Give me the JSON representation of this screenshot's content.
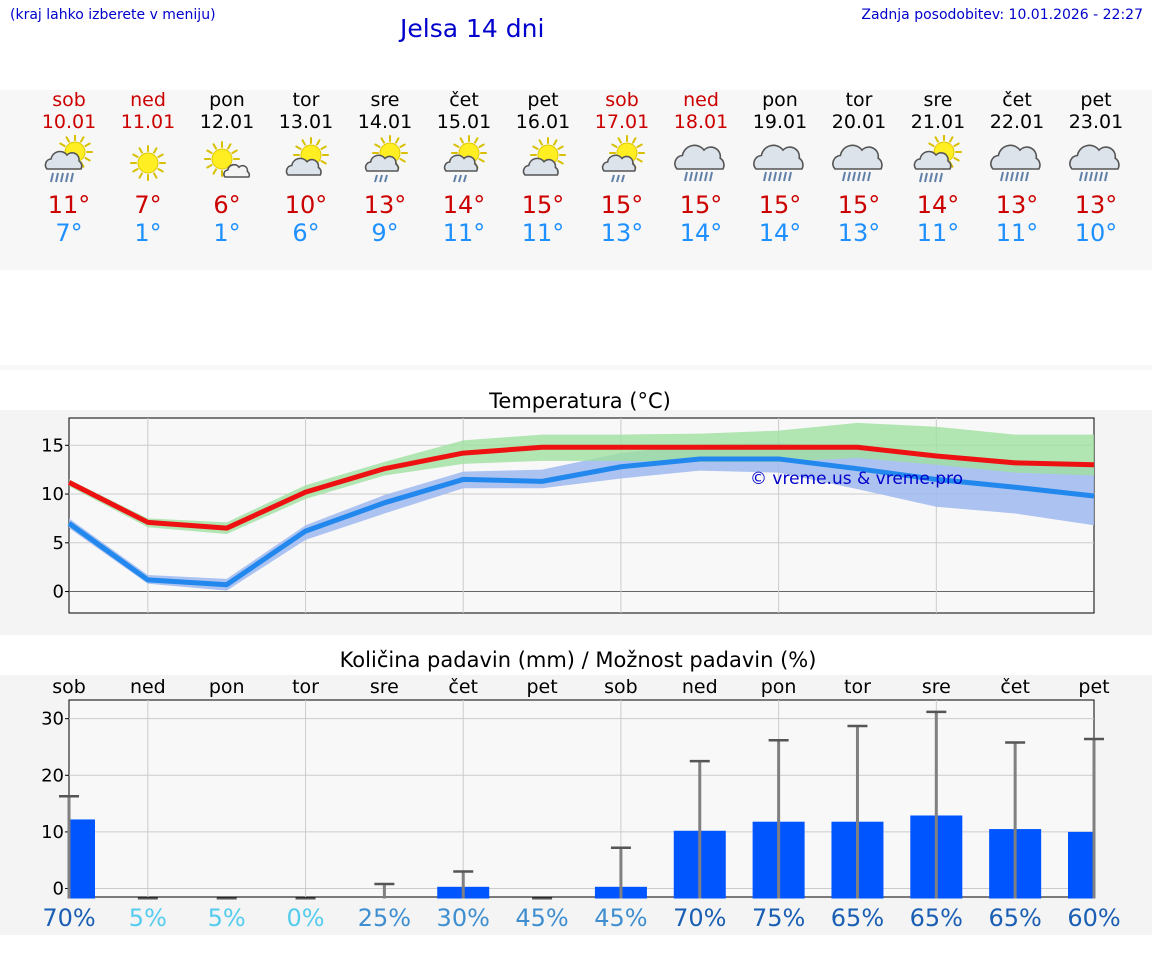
{
  "header": {
    "hint": "(kraj lahko izberete v meniju)",
    "title": "Jelsa 14 dni",
    "updated": "Zadnja posodobitev: 10.01.2026 - 22:27"
  },
  "days": [
    {
      "name": "sob",
      "date": "10.01",
      "weekend": true,
      "icon": "sun-cloud-rain-icon",
      "tmax": "11°",
      "tmin": "7°"
    },
    {
      "name": "ned",
      "date": "11.01",
      "weekend": true,
      "icon": "sun-icon",
      "tmax": "7°",
      "tmin": "1°"
    },
    {
      "name": "pon",
      "date": "12.01",
      "weekend": false,
      "icon": "sun-small-cloud-icon",
      "tmax": "6°",
      "tmin": "1°"
    },
    {
      "name": "tor",
      "date": "13.01",
      "weekend": false,
      "icon": "sun-cloud-icon",
      "tmax": "10°",
      "tmin": "6°"
    },
    {
      "name": "sre",
      "date": "14.01",
      "weekend": false,
      "icon": "sun-cloud-drizzle-icon",
      "tmax": "13°",
      "tmin": "9°"
    },
    {
      "name": "čet",
      "date": "15.01",
      "weekend": false,
      "icon": "sun-cloud-drizzle-icon",
      "tmax": "14°",
      "tmin": "11°"
    },
    {
      "name": "pet",
      "date": "16.01",
      "weekend": false,
      "icon": "sun-cloud-icon",
      "tmax": "15°",
      "tmin": "11°"
    },
    {
      "name": "sob",
      "date": "17.01",
      "weekend": true,
      "icon": "sun-cloud-drizzle-icon",
      "tmax": "15°",
      "tmin": "13°"
    },
    {
      "name": "ned",
      "date": "18.01",
      "weekend": true,
      "icon": "cloud-rain-icon",
      "tmax": "15°",
      "tmin": "14°"
    },
    {
      "name": "pon",
      "date": "19.01",
      "weekend": false,
      "icon": "cloud-rain-icon",
      "tmax": "15°",
      "tmin": "14°"
    },
    {
      "name": "tor",
      "date": "20.01",
      "weekend": false,
      "icon": "cloud-rain-icon",
      "tmax": "15°",
      "tmin": "13°"
    },
    {
      "name": "sre",
      "date": "21.01",
      "weekend": false,
      "icon": "sun-cloud-rain-icon",
      "tmax": "14°",
      "tmin": "11°"
    },
    {
      "name": "čet",
      "date": "22.01",
      "weekend": false,
      "icon": "cloud-rain-icon",
      "tmax": "13°",
      "tmin": "11°"
    },
    {
      "name": "pet",
      "date": "23.01",
      "weekend": false,
      "icon": "cloud-rain-icon",
      "tmax": "13°",
      "tmin": "10°"
    }
  ],
  "colors": {
    "weekend": "#cc0000",
    "tmax": "#ee1111",
    "tmin": "#2288ee",
    "tmax_band": "#9fe09f",
    "tmin_band": "#9fb8f0",
    "bar": "#0055ff",
    "whisker": "#808080",
    "link": "#0000cc"
  },
  "chart_data": [
    {
      "type": "line",
      "title": "Temperatura (°C)",
      "watermark": "© vreme.us & vreme.pro",
      "x": [
        "sob",
        "ned",
        "pon",
        "tor",
        "sre",
        "čet",
        "pet",
        "sob",
        "ned",
        "pon",
        "tor",
        "sre",
        "čet",
        "pet"
      ],
      "yticks": [
        "0",
        "5",
        "10",
        "15"
      ],
      "ylim": [
        -2.2,
        17.8
      ],
      "series": [
        {
          "name": "max",
          "values": [
            11.2,
            7.1,
            6.5,
            10.2,
            12.6,
            14.2,
            14.8,
            14.8,
            14.8,
            14.8,
            14.8,
            13.9,
            13.2,
            13.0
          ]
        },
        {
          "name": "min",
          "values": [
            7.0,
            1.2,
            0.7,
            6.2,
            9.1,
            11.5,
            11.3,
            12.8,
            13.6,
            13.6,
            12.6,
            11.5,
            10.7,
            9.8
          ]
        }
      ],
      "bands": [
        {
          "name": "max_range",
          "low": [
            10.8,
            6.6,
            5.9,
            9.5,
            11.9,
            13.1,
            13.4,
            13.4,
            13.3,
            13.3,
            13.7,
            13.0,
            12.2,
            11.9
          ],
          "high": [
            11.5,
            7.5,
            7.1,
            10.9,
            13.3,
            15.5,
            16.1,
            16.1,
            16.2,
            16.5,
            17.3,
            16.9,
            16.1,
            16.1
          ]
        },
        {
          "name": "min_range",
          "low": [
            6.5,
            0.8,
            0.1,
            5.3,
            8.0,
            10.6,
            10.6,
            11.6,
            12.4,
            12.2,
            10.5,
            8.7,
            8.0,
            6.8
          ],
          "high": [
            7.5,
            1.7,
            1.3,
            6.8,
            9.9,
            12.3,
            12.5,
            14.2,
            15.1,
            15.2,
            14.8,
            14.0,
            13.3,
            12.8
          ]
        }
      ]
    },
    {
      "type": "bar",
      "title": "Količina padavin (mm) / Možnost padavin (%)",
      "categories": [
        "sob",
        "ned",
        "pon",
        "tor",
        "sre",
        "čet",
        "pet",
        "sob",
        "ned",
        "pon",
        "tor",
        "sre",
        "čet",
        "pet"
      ],
      "yticks": [
        "0",
        "10",
        "20",
        "30"
      ],
      "ylim": [
        -1.5,
        33.3
      ],
      "values": [
        12.2,
        0,
        0,
        0,
        0,
        0.3,
        0,
        0.3,
        10.2,
        11.8,
        11.8,
        12.9,
        10.5,
        10.0
      ],
      "whisker_high": [
        16.3,
        0,
        0,
        0,
        0.8,
        3.0,
        0,
        7.2,
        22.5,
        26.2,
        28.7,
        31.2,
        25.8,
        26.4
      ],
      "probability": [
        "70%",
        "5%",
        "5%",
        "0%",
        "25%",
        "30%",
        "45%",
        "45%",
        "70%",
        "75%",
        "65%",
        "65%",
        "65%",
        "60%"
      ]
    }
  ]
}
